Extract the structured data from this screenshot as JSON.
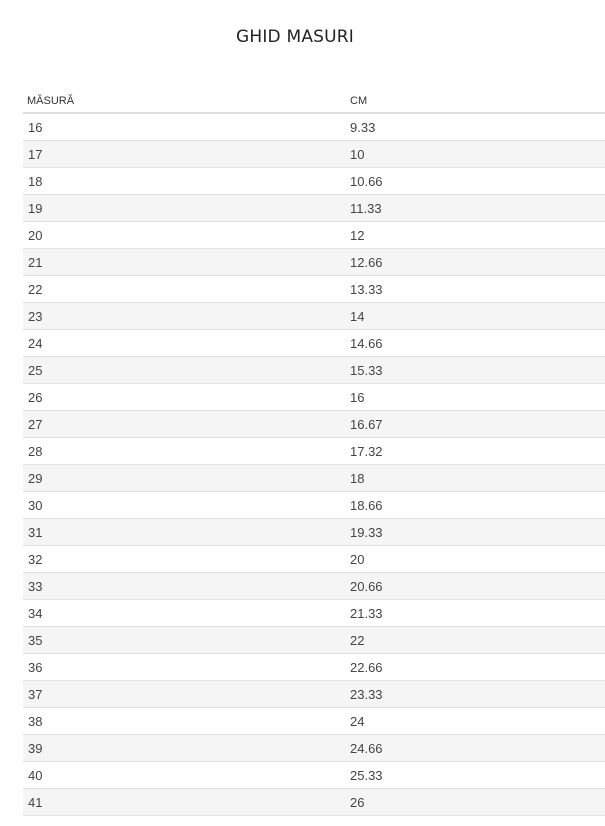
{
  "title": "GHID MASURI",
  "table": {
    "headers": [
      "MĂSURĂ",
      "CM"
    ],
    "rows": [
      [
        "16",
        "9.33"
      ],
      [
        "17",
        "10"
      ],
      [
        "18",
        "10.66"
      ],
      [
        "19",
        "11.33"
      ],
      [
        "20",
        "12"
      ],
      [
        "21",
        "12.66"
      ],
      [
        "22",
        "13.33"
      ],
      [
        "23",
        "14"
      ],
      [
        "24",
        "14.66"
      ],
      [
        "25",
        "15.33"
      ],
      [
        "26",
        "16"
      ],
      [
        "27",
        "16.67"
      ],
      [
        "28",
        "17.32"
      ],
      [
        "29",
        "18"
      ],
      [
        "30",
        "18.66"
      ],
      [
        "31",
        "19.33"
      ],
      [
        "32",
        "20"
      ],
      [
        "33",
        "20.66"
      ],
      [
        "34",
        "21.33"
      ],
      [
        "35",
        "22"
      ],
      [
        "36",
        "22.66"
      ],
      [
        "37",
        "23.33"
      ],
      [
        "38",
        "24"
      ],
      [
        "39",
        "24.66"
      ],
      [
        "40",
        "25.33"
      ],
      [
        "41",
        "26"
      ]
    ]
  }
}
